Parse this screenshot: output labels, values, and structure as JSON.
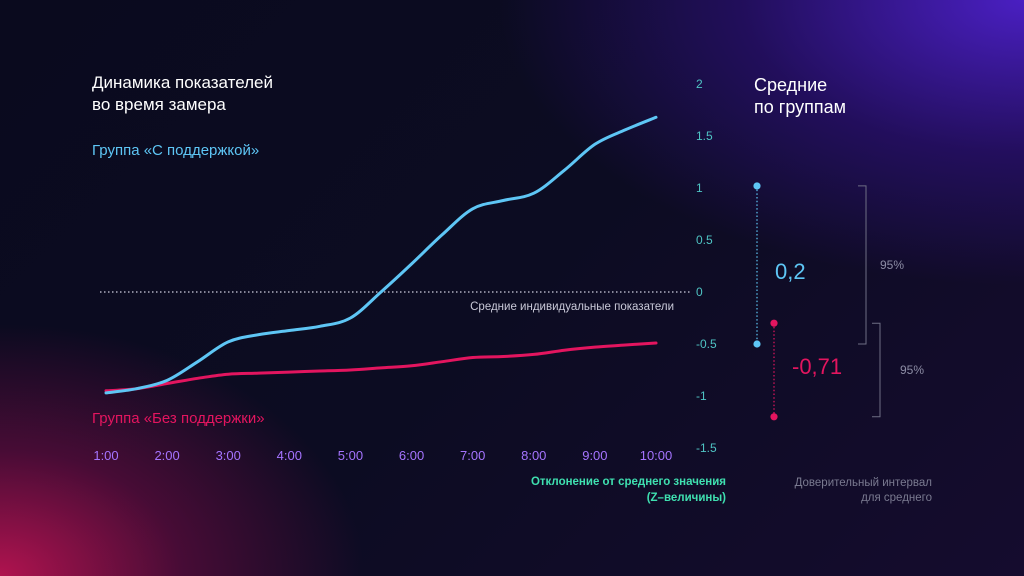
{
  "title": {
    "line1": "Динамика показателей",
    "line2": "во время замера"
  },
  "means_title": {
    "line1": "Средние",
    "line2": "по группам"
  },
  "colors": {
    "supported": "#5ec6f5",
    "unsupported": "#e3155f",
    "x_ticks": "#a574ff",
    "y_ticks": "#4fc4c4",
    "axis_title": "#3fe0b0"
  },
  "reference_line_label": "Средние индивидуальные показатели",
  "axis_title": {
    "line1": "Отклонение от среднего значения",
    "line2": "(Z–величины)"
  },
  "ci_note": {
    "line1": "Доверительный интервал",
    "line2": "для среднего"
  },
  "chart_data": {
    "type": "line",
    "title": "Динамика показателей во время замера",
    "xlabel": "",
    "ylabel": "Отклонение от среднего значения (Z–величины)",
    "categories": [
      "1:00",
      "2:00",
      "3:00",
      "4:00",
      "5:00",
      "6:00",
      "7:00",
      "8:00",
      "9:00",
      "10:00"
    ],
    "y_ticks": [
      "2",
      "1.5",
      "1",
      "0.5",
      "0",
      "-0.5",
      "-1",
      "-1.5"
    ],
    "y_tick_values": [
      2,
      1.5,
      1,
      0.5,
      0,
      -0.5,
      -1,
      -1.5
    ],
    "ylim": [
      -1.5,
      2
    ],
    "reference_value": 0,
    "series": [
      {
        "name": "Группа «С поддержкой»",
        "x": [
          1,
          1.5,
          2,
          2.5,
          3,
          3.5,
          4,
          4.5,
          5,
          5.5,
          6,
          6.5,
          7,
          7.5,
          8,
          8.5,
          9,
          9.5,
          10
        ],
        "values": [
          -0.97,
          -0.93,
          -0.85,
          -0.67,
          -0.48,
          -0.41,
          -0.37,
          -0.33,
          -0.25,
          0.0,
          0.27,
          0.55,
          0.8,
          0.88,
          0.95,
          1.17,
          1.42,
          1.56,
          1.68
        ]
      },
      {
        "name": "Группа «Без поддержки»",
        "x": [
          1,
          1.5,
          2,
          2.5,
          3,
          3.5,
          4,
          4.5,
          5,
          5.5,
          6,
          6.5,
          7,
          7.5,
          8,
          8.5,
          9,
          9.5,
          10
        ],
        "values": [
          -0.95,
          -0.93,
          -0.88,
          -0.83,
          -0.79,
          -0.78,
          -0.77,
          -0.76,
          -0.75,
          -0.73,
          -0.71,
          -0.67,
          -0.63,
          -0.62,
          -0.6,
          -0.56,
          -0.53,
          -0.51,
          -0.49
        ]
      }
    ],
    "means": [
      {
        "group": "Группа «С поддержкой»",
        "value": 0.2,
        "label": "0,2",
        "ci": [
          -0.5,
          1.02
        ],
        "ci_label": "95%"
      },
      {
        "group": "Группа «Без поддержки»",
        "value": -0.71,
        "label": "-0,71",
        "ci": [
          -1.2,
          -0.3
        ],
        "ci_label": "95%"
      }
    ]
  }
}
